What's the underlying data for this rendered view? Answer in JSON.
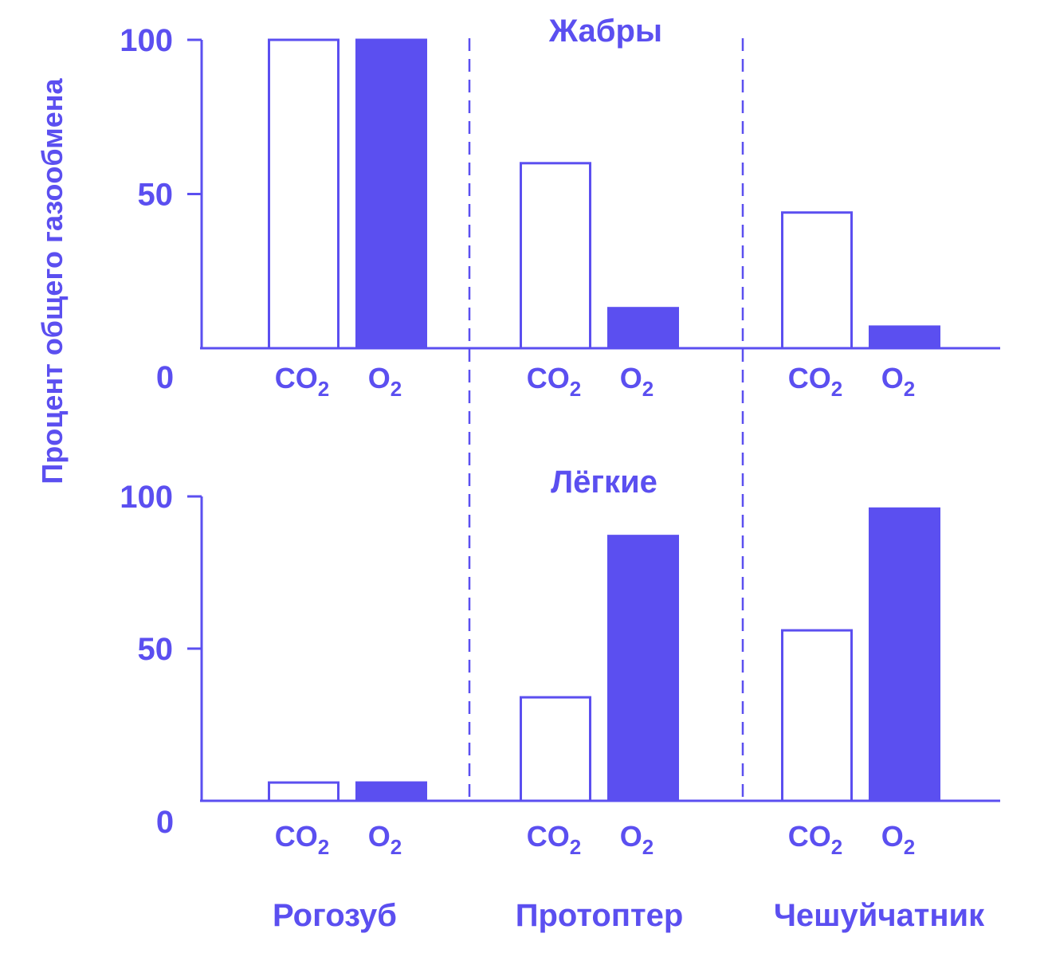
{
  "colors": {
    "accent": "#5b4ff0",
    "background": "#ffffff"
  },
  "ylabel": "Процент общего газообмена",
  "groups": [
    "Рогозуб",
    "Протоптер",
    "Чешуйчатник"
  ],
  "gas_labels": {
    "co2": "CO",
    "co2_sub": "2",
    "o2": "O",
    "o2_sub": "2"
  },
  "chart_data": [
    {
      "type": "bar",
      "title": "Жабры",
      "categories": [
        "Рогозуб",
        "Протоптер",
        "Чешуйчатник"
      ],
      "series": [
        {
          "name": "CO₂",
          "values": [
            100,
            60,
            44
          ],
          "style": "hollow"
        },
        {
          "name": "O₂",
          "values": [
            100,
            13,
            7
          ],
          "style": "filled"
        }
      ],
      "yticks": [
        0,
        50,
        100
      ],
      "ylim": [
        0,
        100
      ],
      "grid": false
    },
    {
      "type": "bar",
      "title": "Лёгкие",
      "categories": [
        "Рогозуб",
        "Протоптер",
        "Чешуйчатник"
      ],
      "series": [
        {
          "name": "CO₂",
          "values": [
            6,
            34,
            56
          ],
          "style": "hollow"
        },
        {
          "name": "O₂",
          "values": [
            6,
            87,
            96
          ],
          "style": "filled"
        }
      ],
      "yticks": [
        0,
        50,
        100
      ],
      "ylim": [
        0,
        100
      ],
      "grid": false
    }
  ]
}
